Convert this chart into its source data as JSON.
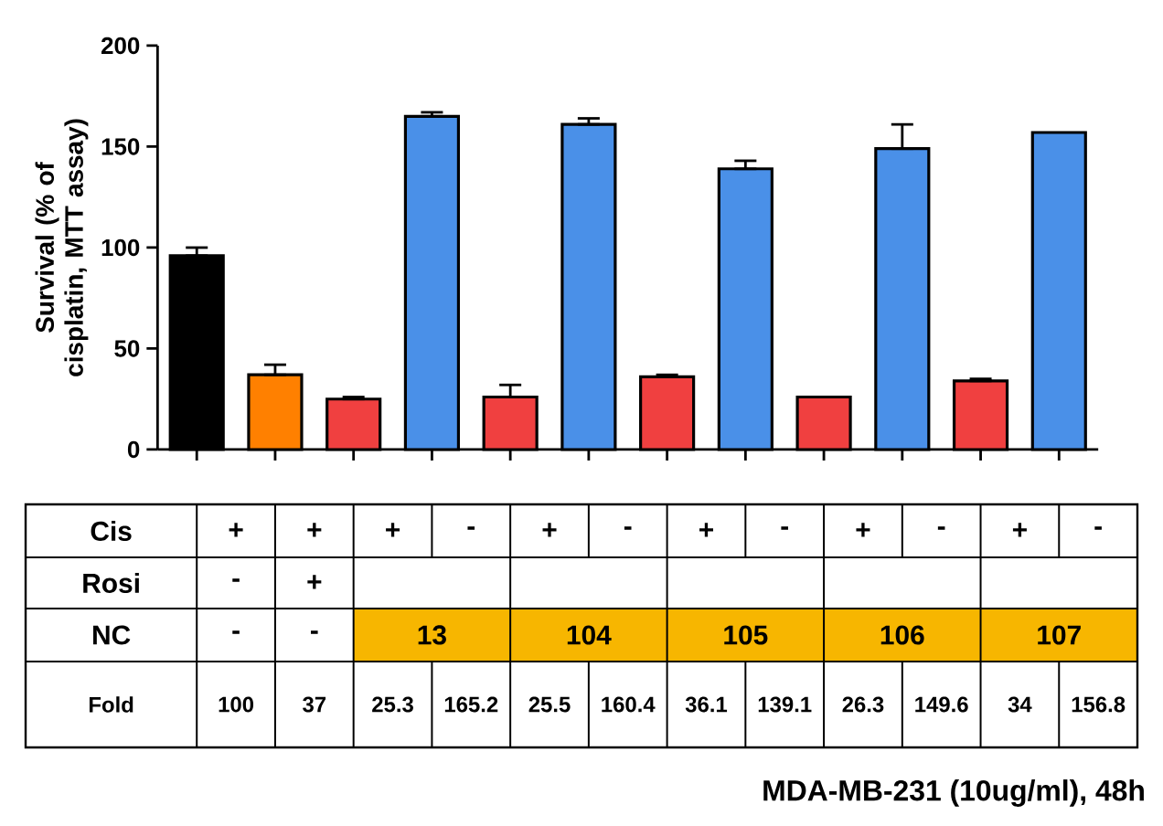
{
  "chart_data": {
    "type": "bar",
    "ylabel": "Survival (% of cisplatin, MTT assay)",
    "categories": [
      null,
      null,
      null,
      null,
      null,
      null,
      null,
      null,
      null,
      null,
      null,
      null
    ],
    "values": [
      96,
      37,
      25,
      165,
      26,
      161,
      36,
      139,
      26,
      149,
      34,
      157
    ],
    "colors": [
      "#000000",
      "#ff8000",
      "#f04040",
      "#4a90e8",
      "#f04040",
      "#4a90e8",
      "#f04040",
      "#4a90e8",
      "#f04040",
      "#4a90e8",
      "#f04040",
      "#4a90e8"
    ],
    "errors": [
      [
        96,
        100
      ],
      [
        37,
        42
      ],
      [
        25,
        26
      ],
      [
        165,
        167
      ],
      [
        26,
        32
      ],
      [
        161,
        164
      ],
      [
        36,
        37
      ],
      [
        139,
        143
      ],
      null,
      [
        149,
        161
      ],
      [
        34,
        35
      ],
      null
    ],
    "ylim": [
      0,
      200
    ],
    "yticks": [
      0,
      50,
      100,
      150,
      200
    ],
    "tick_labels": "y",
    "annotations": [
      "Cis",
      "Rosi",
      "NC",
      "Fold",
      "+",
      "+",
      "+",
      "-",
      "+",
      "-",
      "+",
      "-",
      "+",
      "-",
      "+",
      "-",
      "-",
      "+",
      "-",
      "-",
      "13",
      "104",
      "105",
      "106",
      "107",
      "100",
      "37",
      "25.3",
      "165.2",
      "25.5",
      "160.4",
      "36.1",
      "139.1",
      "26.3",
      "149.6",
      "34",
      "156.8",
      "MDA-MB-231 (10ug/ml), 48h"
    ]
  }
}
